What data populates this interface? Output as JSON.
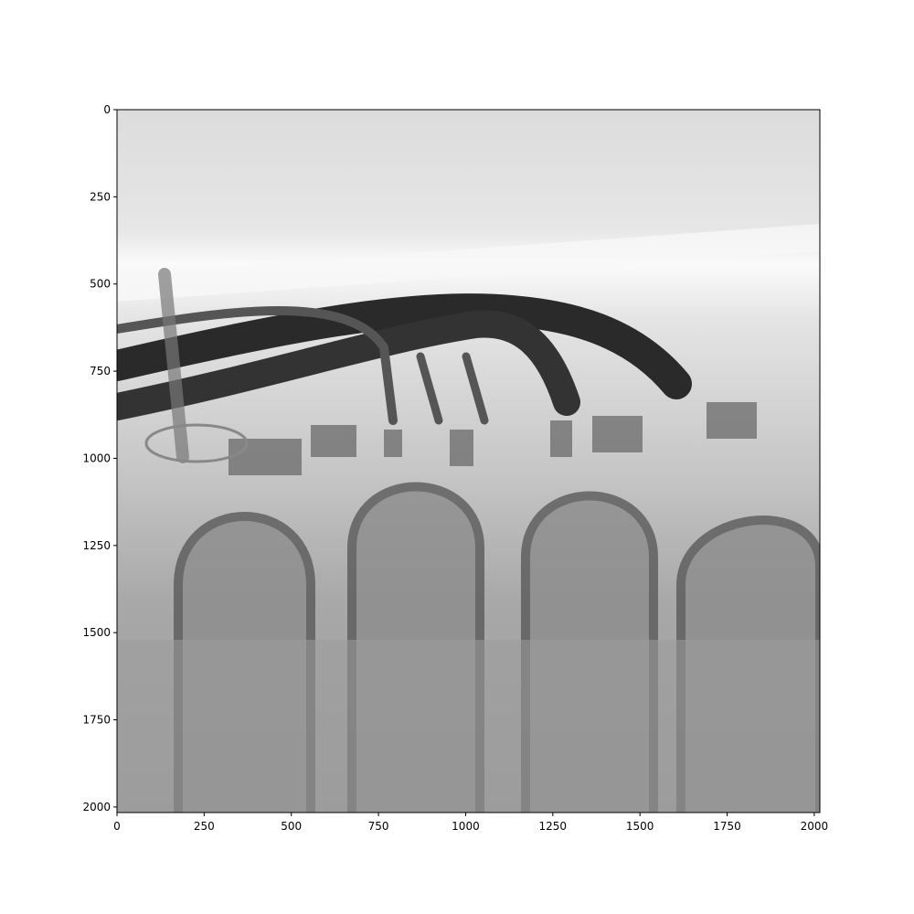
{
  "chart_data": {
    "type": "image",
    "xlim": [
      0,
      2016
    ],
    "ylim": [
      2016,
      0
    ],
    "xticks": [
      0,
      250,
      500,
      750,
      1000,
      1250,
      1500,
      1750,
      2000
    ],
    "yticks": [
      0,
      250,
      500,
      750,
      1000,
      1250,
      1500,
      1750,
      2000
    ]
  }
}
